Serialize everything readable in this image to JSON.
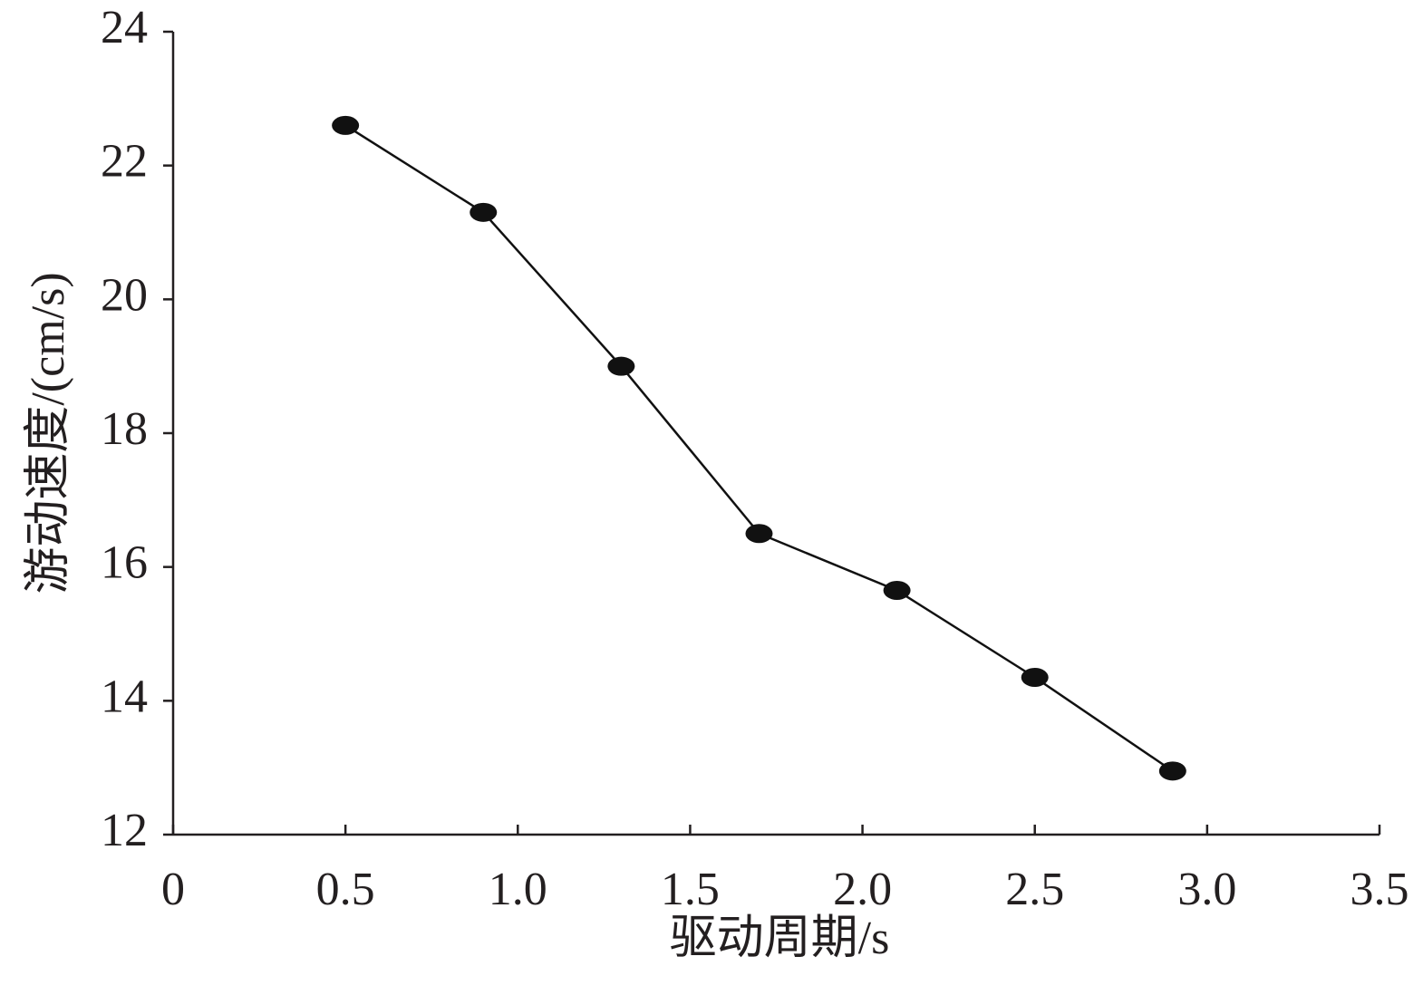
{
  "chart_data": {
    "type": "line",
    "x_label": "驱动周期/s",
    "y_label": "游动速度/(cm/s)",
    "x": [
      0.5,
      0.9,
      1.3,
      1.7,
      2.1,
      2.5,
      2.9
    ],
    "series": [
      {
        "color": "#111111",
        "values": [
          22.6,
          21.3,
          19.0,
          16.5,
          15.65,
          14.35,
          12.95
        ]
      }
    ],
    "xlim": [
      0,
      3.5
    ],
    "xticks": [
      0,
      0.5,
      {
        "value": 1,
        "label": "1.0"
      },
      1.5,
      {
        "value": 2,
        "label": "2.0"
      },
      2.5,
      {
        "value": 3,
        "label": "3.0"
      },
      3.5
    ],
    "ylim": [
      12,
      24
    ],
    "yticks": [
      12,
      14,
      16,
      18,
      20,
      22,
      24
    ],
    "grid": false
  }
}
